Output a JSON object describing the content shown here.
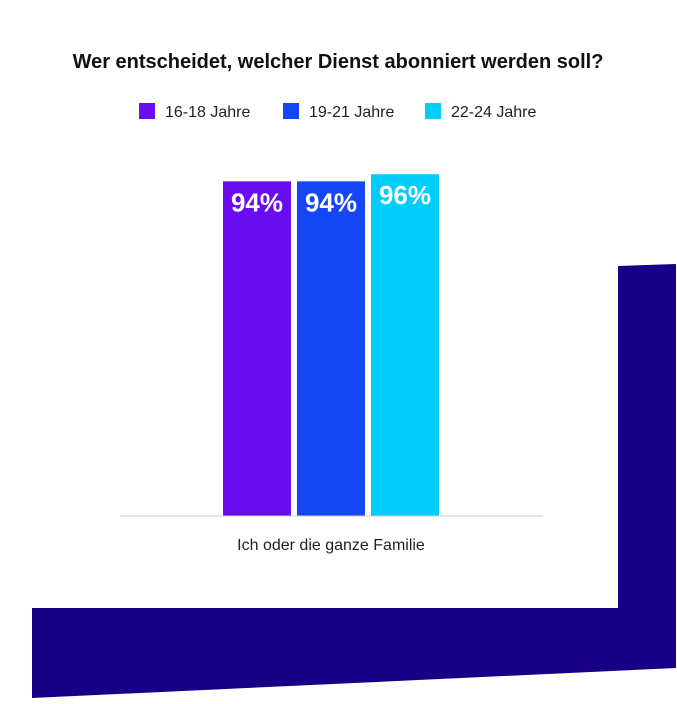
{
  "chart_data": {
    "type": "bar",
    "title": "Wer entscheidet, welcher Dienst abonniert werden soll?",
    "categories": [
      "Ich oder die ganze Familie"
    ],
    "series": [
      {
        "name": "16-18 Jahre",
        "values": [
          94
        ],
        "labels": [
          "94%"
        ],
        "color": "#6a0cf0"
      },
      {
        "name": "19-21 Jahre",
        "values": [
          94
        ],
        "labels": [
          "94%"
        ],
        "color": "#1446f6"
      },
      {
        "name": "22-24 Jahre",
        "values": [
          96
        ],
        "labels": [
          "96%"
        ],
        "color": "#00cdf9"
      }
    ],
    "xlabel": "",
    "ylabel": "",
    "ylim": [
      0,
      100
    ],
    "legend_position": "top-center",
    "grid": false
  },
  "colors": {
    "decoration": "#170086",
    "baseline": "#cccccc",
    "text": "#222222"
  }
}
